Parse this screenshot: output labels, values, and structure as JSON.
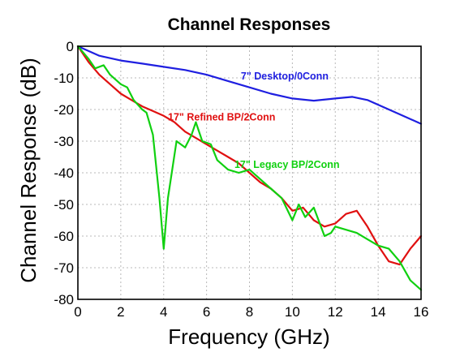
{
  "chart_data": {
    "type": "line",
    "title": "Channel Responses",
    "xlabel": "Frequency (GHz)",
    "ylabel": "Channel Response (dB)",
    "xlim": [
      0,
      16
    ],
    "ylim": [
      -80,
      0
    ],
    "xticks": [
      0,
      2,
      4,
      6,
      8,
      10,
      12,
      14,
      16
    ],
    "yticks": [
      0,
      -10,
      -20,
      -30,
      -40,
      -50,
      -60,
      -70,
      -80
    ],
    "grid": true,
    "series": [
      {
        "name": "7\" Desktop/0Conn",
        "color": "#1f1fe0",
        "label_at": [
          7.6,
          -10.5
        ],
        "x": [
          0,
          1,
          2,
          3,
          4,
          5,
          6,
          7,
          8,
          9,
          10,
          11,
          12,
          12.8,
          13.5,
          14,
          15,
          16
        ],
        "y": [
          0,
          -3,
          -4.5,
          -5.5,
          -6.5,
          -7.5,
          -9,
          -11,
          -13,
          -15,
          -16.5,
          -17.2,
          -16.5,
          -16,
          -17,
          -18.5,
          -21.5,
          -24.5
        ]
      },
      {
        "name": "17\" Refined BP/2Conn",
        "color": "#e01010",
        "label_at": [
          4.2,
          -23.5
        ],
        "x": [
          0,
          0.5,
          1,
          1.5,
          2,
          2.5,
          3,
          3.5,
          4,
          4.5,
          5,
          5.5,
          6,
          6.5,
          7,
          7.5,
          8,
          8.5,
          9,
          9.5,
          10,
          10.5,
          11,
          11.5,
          12,
          12.5,
          13,
          13.5,
          14,
          14.5,
          15,
          15.5,
          16
        ],
        "y": [
          0,
          -5,
          -9,
          -12,
          -15,
          -17,
          -19,
          -20.5,
          -22,
          -24,
          -27,
          -29,
          -31,
          -33,
          -35,
          -37,
          -40,
          -43,
          -45,
          -48,
          -52,
          -51,
          -55,
          -57,
          -56,
          -53,
          -52,
          -57,
          -63,
          -68,
          -69,
          -64,
          -60
        ]
      },
      {
        "name": "17\" Legacy BP/2Conn",
        "color": "#10d010",
        "label_at": [
          7.3,
          -38.5
        ],
        "x": [
          0,
          0.5,
          0.8,
          1.2,
          1.5,
          2,
          2.3,
          2.6,
          3,
          3.2,
          3.5,
          3.8,
          4,
          4.2,
          4.6,
          5,
          5.3,
          5.5,
          5.8,
          6.2,
          6.5,
          7,
          7.5,
          8,
          8.5,
          9,
          9.5,
          10,
          10.3,
          10.6,
          11,
          11.5,
          11.8,
          12,
          12.5,
          13,
          13.5,
          14,
          14.5,
          15,
          15.5,
          16
        ],
        "y": [
          0,
          -4,
          -7,
          -6,
          -9,
          -12,
          -13,
          -17,
          -20,
          -21,
          -28,
          -48,
          -64,
          -48,
          -30,
          -32,
          -28,
          -24,
          -30,
          -31,
          -36,
          -39,
          -40,
          -39,
          -42,
          -45,
          -48,
          -55,
          -50,
          -54,
          -51,
          -60,
          -59,
          -57,
          -58,
          -59,
          -61,
          -63,
          -64,
          -68,
          -74,
          -77
        ]
      }
    ]
  }
}
